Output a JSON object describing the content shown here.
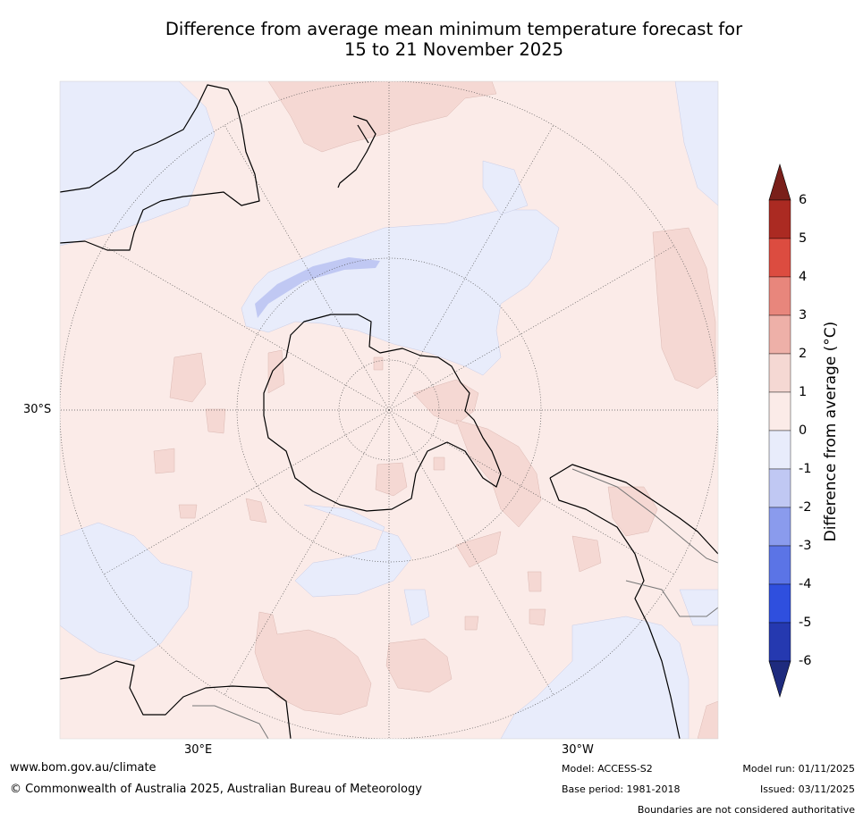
{
  "title": {
    "line1": "Difference from average mean minimum temperature forecast for",
    "line2": "15 to 21 November 2025"
  },
  "map": {
    "projection": "south-polar stereographic",
    "lat_label": "30°S",
    "lon_labels": {
      "east": "30°E",
      "west": "30°W"
    },
    "ocean_color": "#fbebe8",
    "land_outline_color": "#000000",
    "boundary_color": "#777777"
  },
  "colorbar": {
    "label": "Difference from average (∘C)",
    "label_text": "Difference from average (°C)",
    "ticks": [
      "6",
      "5",
      "4",
      "3",
      "2",
      "1",
      "0",
      "-1",
      "-2",
      "-3",
      "-4",
      "-5",
      "-6"
    ],
    "bins": [
      {
        "range": "above 6",
        "color": "#7a1f1a"
      },
      {
        "range": "5 to 6",
        "color": "#ab2a22"
      },
      {
        "range": "4 to 5",
        "color": "#dc4c40"
      },
      {
        "range": "3 to 4",
        "color": "#e8867c"
      },
      {
        "range": "2 to 3",
        "color": "#eeb0a8"
      },
      {
        "range": "1 to 2",
        "color": "#f5d8d3"
      },
      {
        "range": "0 to 1",
        "color": "#fbebe8"
      },
      {
        "range": "-1 to 0",
        "color": "#e8ecfb"
      },
      {
        "range": "-2 to -1",
        "color": "#c0c8f3"
      },
      {
        "range": "-3 to -2",
        "color": "#8a9bed"
      },
      {
        "range": "-4 to -3",
        "color": "#5b74e6"
      },
      {
        "range": "-5 to -4",
        "color": "#2f4fde"
      },
      {
        "range": "-6 to -5",
        "color": "#2539b0"
      },
      {
        "range": "below -6",
        "color": "#1e2b7e"
      }
    ]
  },
  "footer": {
    "url": "www.bom.gov.au/climate",
    "copyright": "© Commonwealth of Australia 2025, Australian Bureau of Meteorology",
    "model": "Model: ACCESS-S2",
    "model_run": "Model run: 01/11/2025",
    "base_period": "Base period: 1981-2018",
    "issued": "Issued: 03/11/2025",
    "disclaimer": "Boundaries are not considered authoritative"
  }
}
